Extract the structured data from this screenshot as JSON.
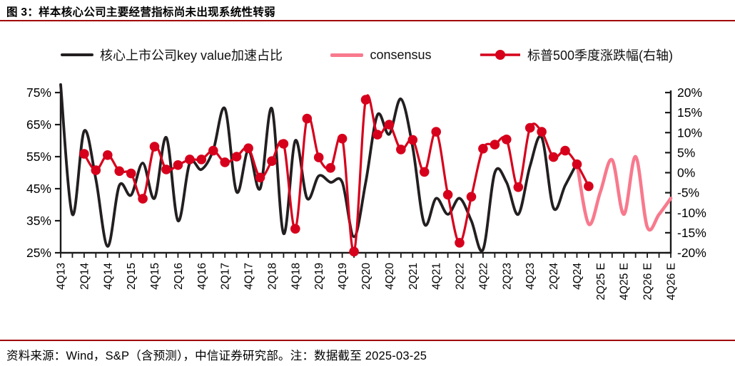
{
  "figure": {
    "title": "图 3：样本核心公司主要经营指标尚未出现系统性转弱",
    "source_note": "资料来源：Wind，S&P（含预测），中信证券研究部。注：数据截至 2025-03-25",
    "rule_color": "#a00000",
    "axis_color": "#1a1a1a"
  },
  "legend": [
    {
      "label": "核心上市公司key value加速占比",
      "color": "#231f20",
      "marker": "line"
    },
    {
      "label": "consensus",
      "color": "#f8798d",
      "marker": "line"
    },
    {
      "label": "标普500季度涨跌幅(右轴)",
      "color": "#d6001c",
      "marker": "line-dot"
    }
  ],
  "chart_data": {
    "type": "line",
    "title": "样本核心公司主要经营指标尚未出现系统性转弱",
    "grid": false,
    "legend_position": "top",
    "x_categories": [
      "4Q13",
      "1Q14",
      "2Q14",
      "3Q14",
      "4Q14",
      "1Q15",
      "2Q15",
      "3Q15",
      "4Q15",
      "1Q16",
      "2Q16",
      "3Q16",
      "4Q16",
      "1Q17",
      "2Q17",
      "3Q17",
      "4Q17",
      "1Q18",
      "2Q18",
      "3Q18",
      "4Q18",
      "1Q19",
      "2Q19",
      "3Q19",
      "4Q19",
      "1Q20",
      "2Q20",
      "3Q20",
      "4Q20",
      "1Q21",
      "2Q21",
      "3Q21",
      "4Q21",
      "1Q22",
      "2Q22",
      "3Q22",
      "4Q22",
      "1Q23",
      "2Q23",
      "3Q23",
      "4Q23",
      "1Q24",
      "2Q24",
      "3Q24",
      "4Q24",
      "1Q25",
      "2Q25",
      "3Q25",
      "4Q25",
      "1Q26",
      "2Q26",
      "3Q26",
      "4Q26"
    ],
    "x_tick_labels": [
      "4Q13",
      "2Q14",
      "4Q14",
      "2Q15",
      "4Q15",
      "2Q16",
      "4Q16",
      "2Q17",
      "4Q17",
      "2Q18",
      "4Q18",
      "2Q19",
      "4Q19",
      "2Q20",
      "4Q20",
      "2Q21",
      "4Q21",
      "2Q22",
      "4Q22",
      "2Q23",
      "4Q23",
      "2Q24",
      "4Q24",
      "2Q25 E",
      "4Q25 E",
      "2Q26 E",
      "4Q26 E"
    ],
    "left_axis": {
      "min": 25,
      "max": 75,
      "step": 10,
      "unit": "%",
      "tick_labels": [
        "75%",
        "65%",
        "55%",
        "45%",
        "35%",
        "25%"
      ]
    },
    "right_axis": {
      "min": -20,
      "max": 20,
      "step": 5,
      "unit": "%",
      "tick_labels": [
        "20%",
        "15%",
        "10%",
        "5%",
        "0%",
        "-5%",
        "-10%",
        "-15%",
        "-20%"
      ]
    },
    "series": [
      {
        "name": "核心上市公司key value加速占比",
        "axis": "left",
        "color": "#231f20",
        "marker": false,
        "start_index": 0,
        "values": [
          77.5,
          37,
          63,
          48,
          27,
          46,
          43,
          53,
          42,
          61,
          35,
          53,
          51,
          57,
          70,
          44,
          57,
          45,
          70,
          31,
          60,
          42,
          49,
          47,
          47,
          30,
          47,
          68,
          62,
          73,
          58,
          34,
          42,
          37,
          42,
          35,
          26,
          50,
          47,
          37,
          52,
          61,
          39,
          46,
          53
        ]
      },
      {
        "name": "consensus",
        "axis": "left",
        "color": "#f8798d",
        "marker": false,
        "start_index": 44,
        "values": [
          53,
          34,
          44,
          54,
          37,
          55,
          33,
          37,
          42
        ]
      },
      {
        "name": "标普500季度涨跌幅(右轴)",
        "axis": "right",
        "color": "#d6001c",
        "marker": true,
        "start_index": 2,
        "values": [
          4.7,
          0.6,
          4.4,
          0.4,
          -0.2,
          -6.5,
          6.5,
          0.8,
          1.9,
          3.3,
          3.3,
          5.5,
          2.6,
          4.0,
          6.1,
          -1.2,
          2.9,
          7.2,
          -14.0,
          13.5,
          3.8,
          1.2,
          8.5,
          -19.7,
          18.2,
          9.5,
          12.0,
          5.8,
          8.2,
          0.2,
          10.2,
          -5.5,
          -17.5,
          -6.0,
          6.0,
          7.0,
          8.3,
          -3.6,
          11.2,
          10.2,
          3.9,
          5.5,
          2.1,
          -3.4
        ]
      }
    ]
  }
}
